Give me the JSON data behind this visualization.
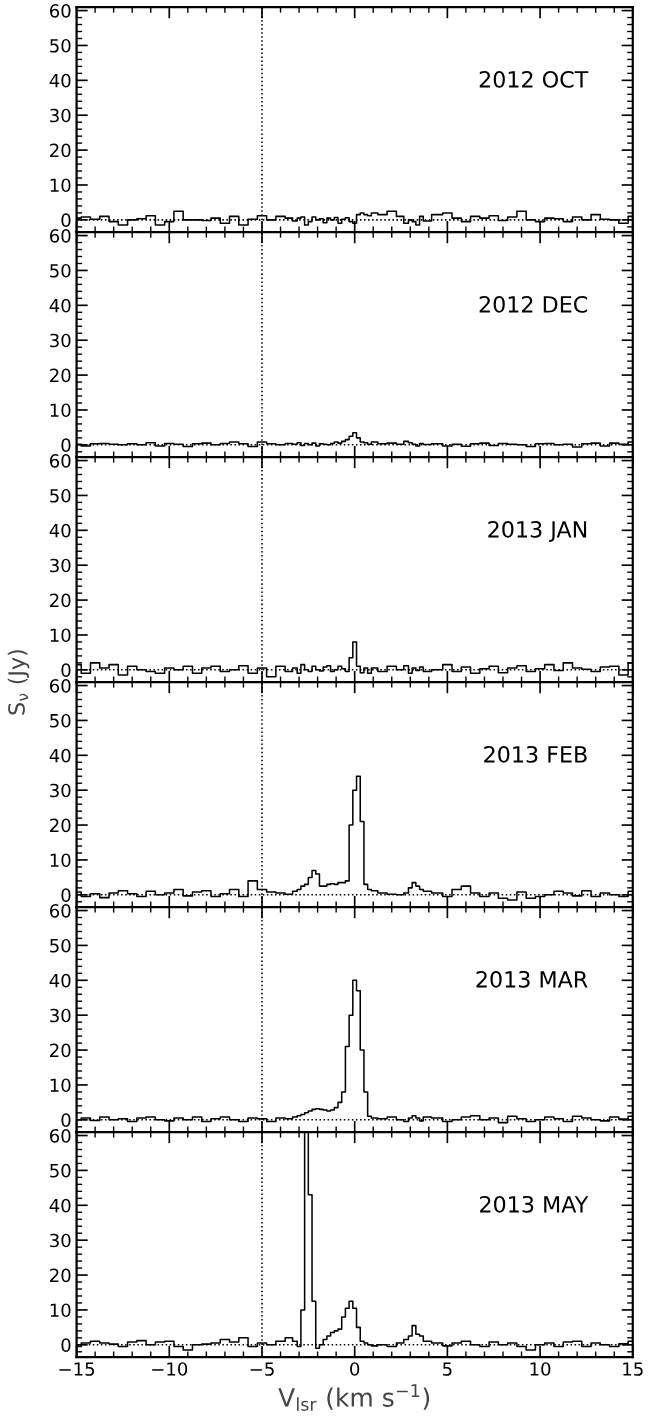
{
  "chart_data": [
    {
      "type": "step",
      "color": "#000000",
      "annotations": [
        "2012 OCT"
      ],
      "xlim": [
        -15,
        15
      ],
      "ylim": [
        -3.5,
        61
      ],
      "yticks": [
        0,
        10,
        20,
        30,
        40,
        50,
        60
      ],
      "tick_labels": "y",
      "grid": false,
      "legend": false,
      "ref_lines": [
        {
          "axis": "x",
          "value": -5,
          "line_style": "dotted"
        },
        {
          "axis": "y",
          "value": 0,
          "line_style": "dotted"
        }
      ],
      "x": [
        -15,
        -14.5,
        -14,
        -13.5,
        -13,
        -12.5,
        -12,
        -11.5,
        -11,
        -10.5,
        -10,
        -9.5,
        -9,
        -8.5,
        -8,
        -7.5,
        -7,
        -6.5,
        -6,
        -5.5,
        -5,
        -4.5,
        -4,
        -3.5,
        -3.2,
        -3.0,
        -2.8,
        -2.6,
        -2.4,
        -2.2,
        -2.0,
        -1.8,
        -1.6,
        -1.4,
        -1.2,
        -1.0,
        -0.8,
        -0.6,
        -0.4,
        -0.2,
        0,
        0.2,
        0.4,
        0.6,
        0.8,
        1.0,
        1.5,
        2.0,
        2.5,
        2.8,
        3.0,
        3.2,
        3.4,
        3.6,
        3.8,
        4.5,
        5,
        5.5,
        6,
        6.5,
        7,
        7.5,
        8,
        8.5,
        9,
        9.5,
        10,
        10.5,
        11,
        11.5,
        12,
        12.5,
        13,
        13.5,
        14,
        14.5,
        15
      ],
      "values": [
        0.5,
        0.8,
        0.2,
        1,
        -0.5,
        -1.5,
        0,
        0.3,
        1.2,
        -1.5,
        -0.5,
        2.5,
        0,
        0,
        -0.2,
        0.5,
        -1,
        1,
        -1.5,
        0.2,
        1.2,
        0,
        1,
        0.5,
        -0.3,
        0.5,
        0.8,
        -1.5,
        -0.5,
        0.8,
        0,
        0.3,
        -0.8,
        0.5,
        0,
        0.7,
        -1,
        0.2,
        0.6,
        -0.5,
        -1,
        1.5,
        2,
        1.5,
        1.2,
        2,
        1.5,
        2.5,
        1,
        -1,
        0,
        -0.5,
        -1.5,
        1,
        -0.3,
        1.5,
        2,
        0.5,
        -0.5,
        1,
        0.5,
        1.2,
        -0.2,
        0.8,
        2.5,
        0,
        -0.5,
        0.5,
        0.3,
        -0.5,
        0.8,
        0,
        1.5,
        0.2,
        0,
        -1,
        1
      ]
    },
    {
      "type": "step",
      "color": "#000000",
      "annotations": [
        "2012 DEC"
      ],
      "xlim": [
        -15,
        15
      ],
      "ylim": [
        -3.5,
        61
      ],
      "yticks": [
        0,
        10,
        20,
        30,
        40,
        50,
        60
      ],
      "tick_labels": "y",
      "grid": false,
      "legend": false,
      "ref_lines": [
        {
          "axis": "x",
          "value": -5,
          "line_style": "dotted"
        },
        {
          "axis": "y",
          "value": 0,
          "line_style": "dotted"
        }
      ],
      "x": [
        -15,
        -14.5,
        -14,
        -13.5,
        -13,
        -12.5,
        -12,
        -11.5,
        -11,
        -10.5,
        -10,
        -9.5,
        -9,
        -8.5,
        -8,
        -7.5,
        -7,
        -6.5,
        -6,
        -5.5,
        -5,
        -4.5,
        -4,
        -3.5,
        -3.2,
        -3.0,
        -2.8,
        -2.6,
        -2.4,
        -2.2,
        -2.0,
        -1.8,
        -1.6,
        -1.4,
        -1.2,
        -1.0,
        -0.8,
        -0.6,
        -0.4,
        -0.2,
        0,
        0.2,
        0.4,
        0.6,
        0.8,
        1.0,
        1.5,
        2.0,
        2.5,
        2.8,
        3.0,
        3.2,
        3.4,
        3.6,
        3.8,
        4.5,
        5,
        5.5,
        6,
        6.5,
        7,
        7.5,
        8,
        8.5,
        9,
        9.5,
        10,
        10.5,
        11,
        11.5,
        12,
        12.5,
        13,
        13.5,
        14,
        14.5,
        15
      ],
      "values": [
        0.2,
        -0.3,
        0.3,
        0.4,
        0.2,
        0,
        0.3,
        0,
        0.6,
        -0.3,
        0.4,
        0.2,
        -0.5,
        0.3,
        0.5,
        0,
        0.4,
        0.8,
        0.3,
        -0.5,
        0.8,
        0.3,
        0,
        0.4,
        0.2,
        0.6,
        -0.2,
        0.4,
        0,
        0.5,
        -0.3,
        0.3,
        0.2,
        0,
        0.4,
        0.8,
        0.5,
        1,
        1.5,
        2.5,
        3.5,
        2,
        0.8,
        0.6,
        0.2,
        0.8,
        0.3,
        0.5,
        0.2,
        1,
        0.6,
        0.2,
        -0.3,
        0.4,
        0.1,
        0.3,
        -0.3,
        0.2,
        -0.4,
        0.3,
        0.5,
        -0.2,
        0.4,
        0.2,
        0,
        -0.5,
        0.3,
        0.4,
        0,
        0.2,
        -0.6,
        0.3,
        0.5,
        -0.3,
        0.5,
        0.2,
        0.8
      ]
    },
    {
      "type": "step",
      "color": "#000000",
      "annotations": [
        "2013 JAN"
      ],
      "ylabel": "S$_{ν}$ (Jy)",
      "xlim": [
        -15,
        15
      ],
      "ylim": [
        -3.5,
        61
      ],
      "yticks": [
        0,
        10,
        20,
        30,
        40,
        50,
        60
      ],
      "tick_labels": "y",
      "grid": false,
      "legend": false,
      "ref_lines": [
        {
          "axis": "x",
          "value": -5,
          "line_style": "dotted"
        },
        {
          "axis": "y",
          "value": 0,
          "line_style": "dotted"
        }
      ],
      "x": [
        -15,
        -14.5,
        -14,
        -13.5,
        -13,
        -12.5,
        -12,
        -11.5,
        -11,
        -10.5,
        -10,
        -9.5,
        -9,
        -8.5,
        -8,
        -7.5,
        -7,
        -6.5,
        -6,
        -5.5,
        -5,
        -4.5,
        -4,
        -3.5,
        -3.2,
        -3.0,
        -2.8,
        -2.6,
        -2.4,
        -2.2,
        -2.0,
        -1.8,
        -1.6,
        -1.4,
        -1.2,
        -1.0,
        -0.8,
        -0.6,
        -0.4,
        -0.2,
        0,
        0.2,
        0.4,
        0.6,
        0.8,
        1.0,
        1.5,
        2.0,
        2.5,
        2.8,
        3.0,
        3.2,
        3.4,
        3.6,
        3.8,
        4.5,
        5,
        5.5,
        6,
        6.5,
        7,
        7.5,
        8,
        8.5,
        9,
        9.5,
        10,
        10.5,
        11,
        11.5,
        12,
        12.5,
        13,
        13.5,
        14,
        14.5,
        15
      ],
      "values": [
        1.5,
        -1,
        2,
        0.5,
        1.5,
        -1.5,
        1,
        0,
        -0.5,
        -1,
        0.5,
        0,
        1,
        -1,
        0.5,
        1,
        -0.5,
        0,
        1.2,
        -1,
        0.5,
        -2,
        1,
        -0.5,
        0.5,
        -1,
        1.5,
        0,
        -0.5,
        1,
        0,
        -0.3,
        0.8,
        1.2,
        -0.5,
        0,
        1,
        0.3,
        -0.5,
        3.5,
        8,
        1,
        -0.8,
        0.5,
        -1,
        0.5,
        -0.5,
        1,
        0,
        1.2,
        -1,
        0.5,
        -0.2,
        0.8,
        -0.5,
        0,
        1.5,
        -0.5,
        0.8,
        -1,
        0.3,
        1,
        -0.8,
        0.5,
        1.2,
        -0.5,
        0.3,
        1.5,
        -0.2,
        2,
        0.5,
        0.2,
        -0.5,
        0.8,
        1,
        -1.5,
        2
      ]
    },
    {
      "type": "step",
      "color": "#000000",
      "annotations": [
        "2013 FEB"
      ],
      "xlim": [
        -15,
        15
      ],
      "ylim": [
        -3.5,
        61
      ],
      "yticks": [
        0,
        10,
        20,
        30,
        40,
        50,
        60
      ],
      "tick_labels": "y",
      "grid": false,
      "legend": false,
      "ref_lines": [
        {
          "axis": "x",
          "value": -5,
          "line_style": "dotted"
        },
        {
          "axis": "y",
          "value": 0,
          "line_style": "dotted"
        }
      ],
      "x": [
        -15,
        -14.5,
        -14,
        -13.5,
        -13,
        -12.5,
        -12,
        -11.5,
        -11,
        -10.5,
        -10,
        -9.5,
        -9,
        -8.5,
        -8,
        -7.5,
        -7,
        -6.5,
        -6,
        -5.5,
        -5,
        -4.5,
        -4,
        -3.5,
        -3.2,
        -3.0,
        -2.8,
        -2.6,
        -2.4,
        -2.2,
        -2.0,
        -1.8,
        -1.6,
        -1.4,
        -1.2,
        -1.0,
        -0.8,
        -0.6,
        -0.4,
        -0.2,
        0,
        0.2,
        0.4,
        0.6,
        0.8,
        1.0,
        1.5,
        2.0,
        2.5,
        2.8,
        3.0,
        3.2,
        3.4,
        3.6,
        3.8,
        4.5,
        5,
        5.5,
        6,
        6.5,
        7,
        7.5,
        8,
        8.5,
        9,
        9.5,
        10,
        10.5,
        11,
        11.5,
        12,
        12.5,
        13,
        13.5,
        14,
        14.5,
        15
      ],
      "values": [
        0.8,
        -0.5,
        0.3,
        -0.8,
        0.5,
        1.2,
        0.3,
        -0.5,
        1,
        0,
        0.5,
        1.5,
        -0.3,
        0.8,
        1.2,
        -0.5,
        0.3,
        1.5,
        -0.5,
        4,
        1.5,
        0.8,
        0.5,
        0.2,
        1,
        1.5,
        2.5,
        3,
        5,
        7,
        6,
        2.5,
        2.5,
        3,
        3.2,
        3,
        3.5,
        3.5,
        4,
        20,
        30,
        34,
        21,
        3,
        1.5,
        1.2,
        0.5,
        0.2,
        0,
        0.5,
        2,
        3.5,
        2.5,
        1.5,
        1,
        0.5,
        -0.5,
        1.5,
        2.5,
        0.5,
        -0.5,
        0.5,
        -1,
        -1.5,
        0.8,
        -1,
        -0.5,
        0,
        1,
        0.5,
        -0.3,
        1.2,
        -0.5,
        0.5,
        0,
        -0.5,
        1
      ]
    },
    {
      "type": "step",
      "color": "#000000",
      "annotations": [
        "2013 MAR"
      ],
      "xlim": [
        -15,
        15
      ],
      "ylim": [
        -3.5,
        61
      ],
      "yticks": [
        0,
        10,
        20,
        30,
        40,
        50,
        60
      ],
      "tick_labels": "y",
      "grid": false,
      "legend": false,
      "ref_lines": [
        {
          "axis": "x",
          "value": -5,
          "line_style": "dotted"
        },
        {
          "axis": "y",
          "value": 0,
          "line_style": "dotted"
        }
      ],
      "x": [
        -15,
        -14.5,
        -14,
        -13.5,
        -13,
        -12.5,
        -12,
        -11.5,
        -11,
        -10.5,
        -10,
        -9.5,
        -9,
        -8.5,
        -8,
        -7.5,
        -7,
        -6.5,
        -6,
        -5.5,
        -5,
        -4.5,
        -4,
        -3.5,
        -3.2,
        -3.0,
        -2.8,
        -2.6,
        -2.4,
        -2.2,
        -2.0,
        -1.8,
        -1.6,
        -1.4,
        -1.2,
        -1.0,
        -0.8,
        -0.6,
        -0.4,
        -0.2,
        0,
        0.2,
        0.4,
        0.6,
        0.8,
        1.0,
        1.5,
        2.0,
        2.5,
        2.8,
        3.0,
        3.2,
        3.4,
        3.6,
        3.8,
        4.5,
        5,
        5.5,
        6,
        6.5,
        7,
        7.5,
        8,
        8.5,
        9,
        9.5,
        10,
        10.5,
        11,
        11.5,
        12,
        12.5,
        13,
        13.5,
        14,
        14.5,
        15
      ],
      "values": [
        0,
        0.5,
        -0.2,
        0.8,
        0,
        0.3,
        -0.5,
        0.5,
        0.8,
        0,
        -0.3,
        0.5,
        0,
        0.8,
        -0.5,
        0.3,
        0.8,
        0,
        -0.5,
        0.5,
        0.3,
        -0.5,
        0.5,
        0.3,
        0.8,
        1.2,
        1.5,
        2,
        2.5,
        3,
        3.2,
        3,
        2.8,
        2.5,
        2.8,
        3.5,
        5,
        8,
        21,
        30,
        40,
        37,
        20,
        8,
        1,
        0.5,
        0.3,
        0.8,
        0,
        -0.5,
        0.5,
        1.2,
        0.5,
        -0.3,
        0.8,
        0.5,
        -0.5,
        0,
        0.8,
        1.2,
        0,
        0.5,
        -0.8,
        1,
        0.3,
        -0.5,
        0,
        0.8,
        0.3,
        -0.5,
        1,
        0.5,
        0,
        -0.3,
        0.8,
        0.2,
        1
      ]
    },
    {
      "type": "step",
      "color": "#000000",
      "annotations": [
        "2013 MAY"
      ],
      "xlabel": "V$_{lsr}$ (km s$^{−1}$)",
      "xlim": [
        -15,
        15
      ],
      "ylim": [
        -3.5,
        61
      ],
      "yticks": [
        0,
        10,
        20,
        30,
        40,
        50,
        60
      ],
      "grid": false,
      "legend": false,
      "xticks": [
        {
          "value": -15,
          "label": "−15"
        },
        {
          "value": -10,
          "label": "−10"
        },
        {
          "value": -5,
          "label": "−5"
        },
        0,
        5,
        10,
        15
      ],
      "ref_lines": [
        {
          "axis": "x",
          "value": -5,
          "line_style": "dotted"
        },
        {
          "axis": "y",
          "value": 0,
          "line_style": "dotted"
        }
      ],
      "x": [
        -15,
        -14.5,
        -14,
        -13.5,
        -13,
        -12.5,
        -12,
        -11.5,
        -11,
        -10.5,
        -10,
        -9.5,
        -9,
        -8.5,
        -8,
        -7.5,
        -7,
        -6.5,
        -6,
        -5.5,
        -5,
        -4.5,
        -4,
        -3.5,
        -3.2,
        -3.0,
        -2.8,
        -2.6,
        -2.4,
        -2.2,
        -2.0,
        -1.8,
        -1.6,
        -1.4,
        -1.2,
        -1.0,
        -0.8,
        -0.6,
        -0.4,
        -0.2,
        0,
        0.2,
        0.4,
        0.6,
        0.8,
        1.0,
        1.5,
        2.0,
        2.5,
        2.8,
        3.0,
        3.2,
        3.4,
        3.6,
        3.8,
        4.5,
        5,
        5.5,
        6,
        6.5,
        7,
        7.5,
        8,
        8.5,
        9,
        9.5,
        10,
        10.5,
        11,
        11.5,
        12,
        12.5,
        13,
        13.5,
        14,
        14.5,
        15
      ],
      "values": [
        -0.5,
        0.5,
        1,
        0.5,
        0.2,
        -0.5,
        0.8,
        1.2,
        0,
        0.8,
        1,
        -0.5,
        -1.5,
        0,
        0.2,
        0.5,
        1.5,
        0.8,
        2,
        -0.5,
        0.5,
        0,
        1,
        2,
        1,
        -0.5,
        10,
        61,
        43,
        12.5,
        -1,
        0,
        1.5,
        2.5,
        3.5,
        4,
        4.5,
        8,
        10.5,
        12.5,
        10.5,
        5,
        1,
        0.5,
        0,
        -0.3,
        0,
        -0.5,
        0.5,
        1.5,
        2.5,
        5.5,
        3,
        2.5,
        1,
        0.5,
        -0.3,
        0.5,
        1,
        0,
        -0.5,
        0.8,
        0,
        0.5,
        -0.5,
        -1.5,
        0,
        0.5,
        -0.5,
        0.8,
        1,
        -0.5,
        0.5,
        0,
        -0.5,
        0.3,
        1
      ]
    }
  ]
}
